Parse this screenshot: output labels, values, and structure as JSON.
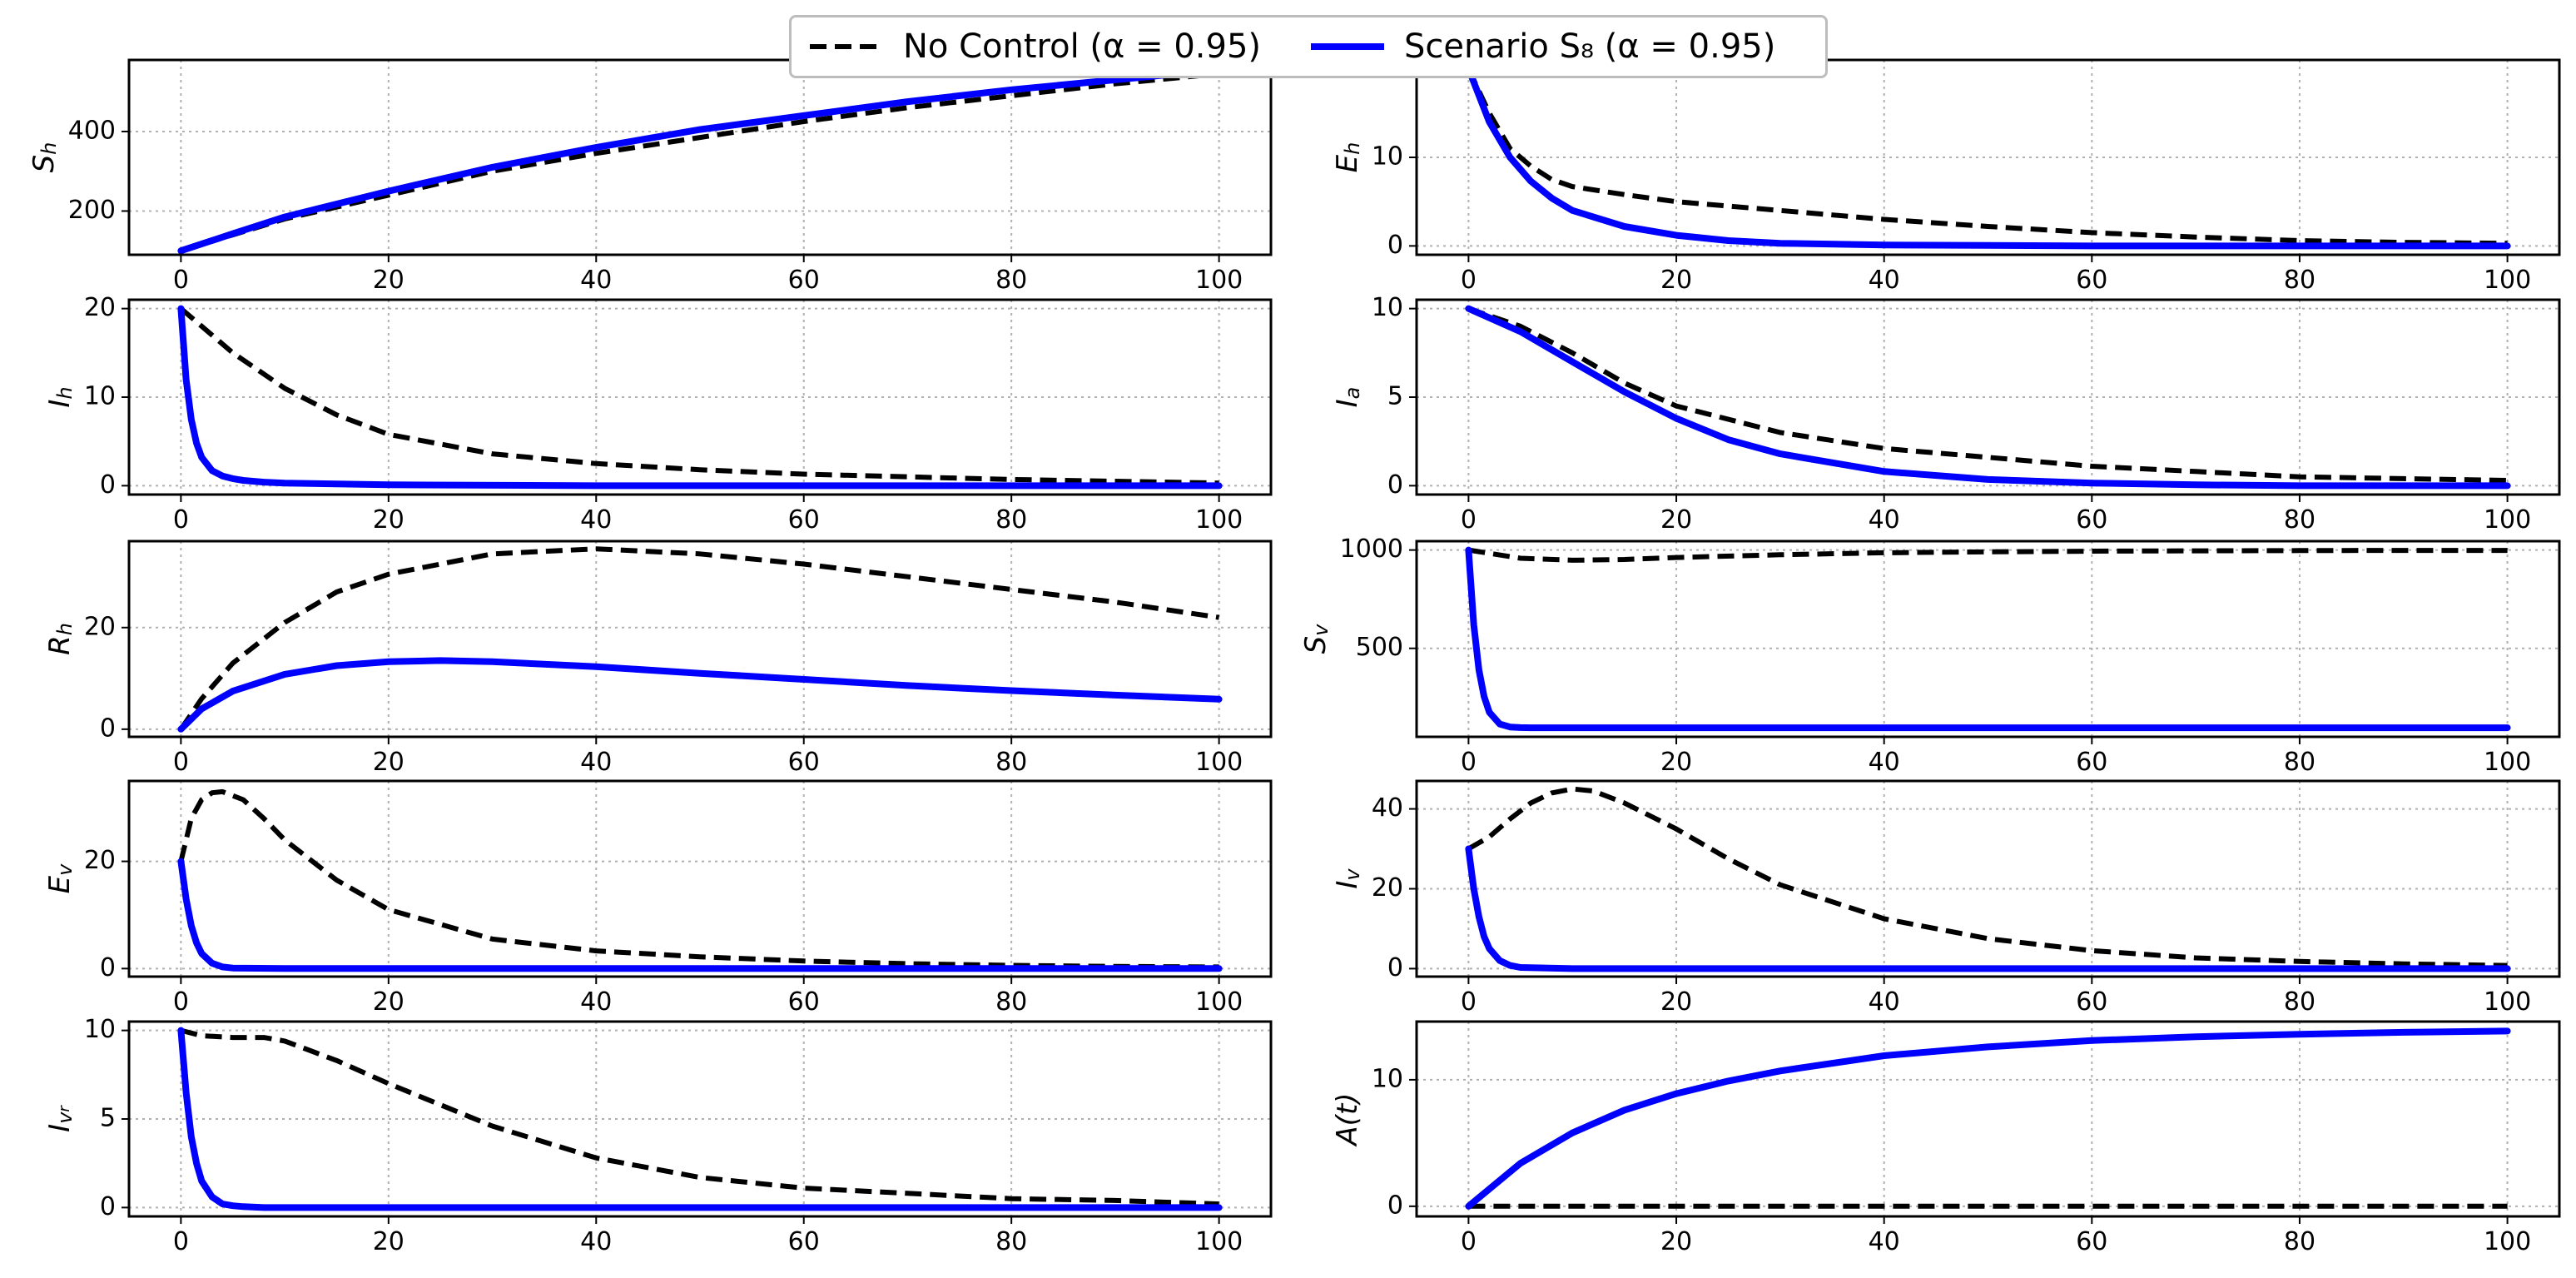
{
  "colors": {
    "no_control": "#000000",
    "scenario": "#0000ff",
    "grid": "#b0b0b0",
    "axis": "#000000"
  },
  "legend": {
    "entries": [
      {
        "series": "no_control",
        "label": "No Control (α = 0.95)"
      },
      {
        "series": "scenario",
        "label": "Scenario S₈ (α = 0.95)"
      }
    ]
  },
  "chart_data": [
    {
      "type": "line",
      "ylabel": "S_h",
      "xlim": [
        -5,
        105
      ],
      "ylim": [
        90,
        580
      ],
      "xticks": [
        0,
        20,
        40,
        60,
        80,
        100
      ],
      "yticks": [
        200,
        400
      ],
      "series": [
        {
          "name": "No Control (α = 0.95)",
          "style": "dashed",
          "x": [
            0,
            5,
            10,
            20,
            30,
            40,
            50,
            60,
            70,
            80,
            90,
            100
          ],
          "y": [
            100,
            140,
            180,
            240,
            300,
            345,
            385,
            425,
            460,
            490,
            520,
            545
          ]
        },
        {
          "name": "Scenario S8 (α = 0.95)",
          "style": "solid",
          "x": [
            0,
            5,
            10,
            20,
            30,
            40,
            50,
            60,
            70,
            80,
            90,
            100
          ],
          "y": [
            100,
            143,
            185,
            250,
            310,
            360,
            405,
            440,
            475,
            505,
            530,
            555
          ]
        }
      ]
    },
    {
      "type": "line",
      "ylabel": "E_h",
      "xlim": [
        -5,
        105
      ],
      "ylim": [
        -1,
        21
      ],
      "xticks": [
        0,
        20,
        40,
        60,
        80,
        100
      ],
      "yticks": [
        0,
        10
      ],
      "series": [
        {
          "name": "No Control (α = 0.95)",
          "style": "dashed",
          "x": [
            0,
            2,
            4,
            6,
            8,
            10,
            15,
            20,
            30,
            40,
            50,
            60,
            70,
            80,
            90,
            100
          ],
          "y": [
            20,
            15,
            11,
            9,
            7.5,
            6.7,
            5.8,
            5,
            4,
            3,
            2.2,
            1.5,
            1,
            0.6,
            0.4,
            0.3
          ]
        },
        {
          "name": "Scenario S8 (α = 0.95)",
          "style": "solid",
          "x": [
            0,
            2,
            4,
            6,
            8,
            10,
            15,
            20,
            25,
            30,
            40,
            50,
            60,
            70,
            80,
            90,
            100
          ],
          "y": [
            20,
            14,
            10,
            7.3,
            5.4,
            4,
            2.2,
            1.2,
            0.6,
            0.3,
            0.1,
            0.05,
            0,
            0,
            0,
            0,
            0
          ]
        }
      ]
    },
    {
      "type": "line",
      "ylabel": "I_h",
      "xlim": [
        -5,
        105
      ],
      "ylim": [
        -1,
        21
      ],
      "xticks": [
        0,
        20,
        40,
        60,
        80,
        100
      ],
      "yticks": [
        0,
        10,
        20
      ],
      "series": [
        {
          "name": "No Control (α = 0.95)",
          "style": "dashed",
          "x": [
            0,
            5,
            10,
            15,
            20,
            30,
            40,
            50,
            60,
            70,
            80,
            90,
            100
          ],
          "y": [
            20,
            15,
            11,
            8,
            5.8,
            3.6,
            2.5,
            1.8,
            1.3,
            1,
            0.7,
            0.5,
            0.3
          ]
        },
        {
          "name": "Scenario S8 (α = 0.95)",
          "style": "solid",
          "x": [
            0,
            0.5,
            1,
            1.5,
            2,
            3,
            4,
            5,
            6,
            8,
            10,
            20,
            40,
            60,
            80,
            100
          ],
          "y": [
            20,
            12,
            7.5,
            4.8,
            3.2,
            1.7,
            1.1,
            0.8,
            0.6,
            0.4,
            0.3,
            0.1,
            0,
            0,
            0,
            0
          ]
        }
      ]
    },
    {
      "type": "line",
      "ylabel": "I_a",
      "xlim": [
        -5,
        105
      ],
      "ylim": [
        -0.5,
        10.5
      ],
      "xticks": [
        0,
        20,
        40,
        60,
        80,
        100
      ],
      "yticks": [
        0,
        5,
        10
      ],
      "series": [
        {
          "name": "No Control (α = 0.95)",
          "style": "dashed",
          "x": [
            0,
            5,
            10,
            15,
            20,
            30,
            40,
            50,
            60,
            70,
            80,
            90,
            100
          ],
          "y": [
            10,
            9,
            7.5,
            5.8,
            4.5,
            3,
            2.1,
            1.6,
            1.1,
            0.8,
            0.5,
            0.4,
            0.3
          ]
        },
        {
          "name": "Scenario S8 (α = 0.95)",
          "style": "solid",
          "x": [
            0,
            5,
            10,
            15,
            20,
            25,
            30,
            40,
            50,
            60,
            70,
            80,
            90,
            100
          ],
          "y": [
            10,
            8.7,
            7,
            5.3,
            3.8,
            2.6,
            1.8,
            0.8,
            0.35,
            0.15,
            0.05,
            0,
            0,
            0
          ]
        }
      ]
    },
    {
      "type": "line",
      "ylabel": "R_h",
      "xlim": [
        -5,
        105
      ],
      "ylim": [
        -1.5,
        37
      ],
      "xticks": [
        0,
        20,
        40,
        60,
        80,
        100
      ],
      "yticks": [
        0,
        20
      ],
      "series": [
        {
          "name": "No Control (α = 0.95)",
          "style": "dashed",
          "x": [
            0,
            2,
            5,
            10,
            15,
            20,
            30,
            40,
            50,
            60,
            70,
            80,
            90,
            100
          ],
          "y": [
            0,
            6,
            13,
            21,
            27,
            30.5,
            34.5,
            35.5,
            34.5,
            32.5,
            30,
            27.5,
            25,
            22
          ]
        },
        {
          "name": "Scenario S8 (α = 0.95)",
          "style": "solid",
          "x": [
            0,
            2,
            5,
            10,
            15,
            20,
            25,
            30,
            40,
            50,
            60,
            70,
            80,
            90,
            100
          ],
          "y": [
            0,
            4,
            7.5,
            10.8,
            12.5,
            13.3,
            13.5,
            13.3,
            12.3,
            11,
            9.8,
            8.6,
            7.6,
            6.7,
            5.9
          ]
        }
      ]
    },
    {
      "type": "line",
      "ylabel": "S_v",
      "xlim": [
        -5,
        105
      ],
      "ylim": [
        50,
        1045
      ],
      "xticks": [
        0,
        20,
        40,
        60,
        80,
        100
      ],
      "yticks": [
        500,
        1000
      ],
      "series": [
        {
          "name": "No Control (α = 0.95)",
          "style": "dashed",
          "x": [
            0,
            5,
            10,
            15,
            20,
            30,
            40,
            50,
            60,
            70,
            80,
            90,
            100
          ],
          "y": [
            1000,
            958,
            948,
            952,
            962,
            976,
            986,
            991,
            994,
            996,
            997,
            998,
            998
          ]
        },
        {
          "name": "Scenario S8 (α = 0.95)",
          "style": "solid",
          "x": [
            0,
            0.5,
            1,
            1.5,
            2,
            3,
            4,
            5,
            6,
            8,
            10,
            20,
            40,
            60,
            80,
            100
          ],
          "y": [
            1000,
            620,
            390,
            255,
            175,
            115,
            100,
            97,
            96,
            96,
            96,
            96,
            96,
            96,
            96,
            96
          ]
        }
      ]
    },
    {
      "type": "line",
      "ylabel": "E_v",
      "xlim": [
        -5,
        105
      ],
      "ylim": [
        -1.5,
        35
      ],
      "xticks": [
        0,
        20,
        40,
        60,
        80,
        100
      ],
      "yticks": [
        0,
        20
      ],
      "series": [
        {
          "name": "No Control (α = 0.95)",
          "style": "dashed",
          "x": [
            0,
            1,
            2,
            3,
            4,
            6,
            8,
            10,
            15,
            20,
            30,
            40,
            50,
            60,
            70,
            80,
            90,
            100
          ],
          "y": [
            20,
            28,
            31.5,
            32.8,
            33,
            31.5,
            28,
            24,
            16.5,
            11,
            5.5,
            3.3,
            2.2,
            1.4,
            0.9,
            0.6,
            0.4,
            0.3
          ]
        },
        {
          "name": "Scenario S8 (α = 0.95)",
          "style": "solid",
          "x": [
            0,
            0.5,
            1,
            1.5,
            2,
            3,
            4,
            5,
            10,
            20,
            40,
            60,
            80,
            100
          ],
          "y": [
            20,
            13,
            8,
            4.8,
            2.8,
            1,
            0.3,
            0.1,
            0,
            0,
            0,
            0,
            0,
            0
          ]
        }
      ]
    },
    {
      "type": "line",
      "ylabel": "I_v",
      "xlim": [
        -5,
        105
      ],
      "ylim": [
        -2,
        47
      ],
      "xticks": [
        0,
        20,
        40,
        60,
        80,
        100
      ],
      "yticks": [
        0,
        20,
        40
      ],
      "series": [
        {
          "name": "No Control (α = 0.95)",
          "style": "dashed",
          "x": [
            0,
            2,
            4,
            6,
            8,
            10,
            12,
            15,
            20,
            25,
            30,
            40,
            50,
            60,
            70,
            80,
            90,
            100
          ],
          "y": [
            30,
            33,
            37.5,
            41.5,
            44,
            45,
            44.5,
            41.5,
            35,
            27.5,
            21,
            12.5,
            7.5,
            4.5,
            2.7,
            1.8,
            1.2,
            0.8
          ]
        },
        {
          "name": "Scenario S8 (α = 0.95)",
          "style": "solid",
          "x": [
            0,
            0.5,
            1,
            1.5,
            2,
            3,
            4,
            5,
            10,
            20,
            40,
            60,
            80,
            100
          ],
          "y": [
            30,
            20,
            13,
            8,
            5,
            2,
            0.8,
            0.3,
            0,
            0,
            0,
            0,
            0,
            0
          ]
        }
      ]
    },
    {
      "type": "line",
      "ylabel": "I_vr",
      "xlim": [
        -5,
        105
      ],
      "ylim": [
        -0.5,
        10.5
      ],
      "xticks": [
        0,
        20,
        40,
        60,
        80,
        100
      ],
      "yticks": [
        0,
        5,
        10
      ],
      "series": [
        {
          "name": "No Control (α = 0.95)",
          "style": "dashed",
          "x": [
            0,
            2,
            5,
            8,
            10,
            15,
            20,
            25,
            30,
            40,
            50,
            60,
            70,
            80,
            90,
            100
          ],
          "y": [
            10,
            9.7,
            9.6,
            9.6,
            9.4,
            8.3,
            7,
            5.8,
            4.6,
            2.8,
            1.7,
            1.1,
            0.8,
            0.5,
            0.4,
            0.2
          ]
        },
        {
          "name": "Scenario S8 (α = 0.95)",
          "style": "solid",
          "x": [
            0,
            0.5,
            1,
            1.5,
            2,
            3,
            4,
            5,
            6,
            8,
            10,
            20,
            40,
            60,
            80,
            100
          ],
          "y": [
            10,
            6.5,
            4,
            2.5,
            1.5,
            0.6,
            0.2,
            0.1,
            0.05,
            0,
            0,
            0,
            0,
            0,
            0,
            0
          ]
        }
      ]
    },
    {
      "type": "line",
      "ylabel": "A(t)",
      "xlim": [
        -5,
        105
      ],
      "ylim": [
        -0.8,
        14.6
      ],
      "xticks": [
        0,
        20,
        40,
        60,
        80,
        100
      ],
      "yticks": [
        0,
        10
      ],
      "series": [
        {
          "name": "No Control (α = 0.95)",
          "style": "dashed",
          "x": [
            0,
            20,
            40,
            60,
            80,
            100
          ],
          "y": [
            0,
            0,
            0,
            0,
            0,
            0
          ]
        },
        {
          "name": "Scenario S8 (α = 0.95)",
          "style": "solid",
          "x": [
            0,
            5,
            10,
            15,
            20,
            25,
            30,
            40,
            50,
            60,
            70,
            80,
            90,
            100
          ],
          "y": [
            0,
            3.4,
            5.8,
            7.6,
            8.9,
            9.9,
            10.7,
            11.9,
            12.6,
            13.1,
            13.4,
            13.6,
            13.75,
            13.85
          ]
        }
      ]
    }
  ]
}
